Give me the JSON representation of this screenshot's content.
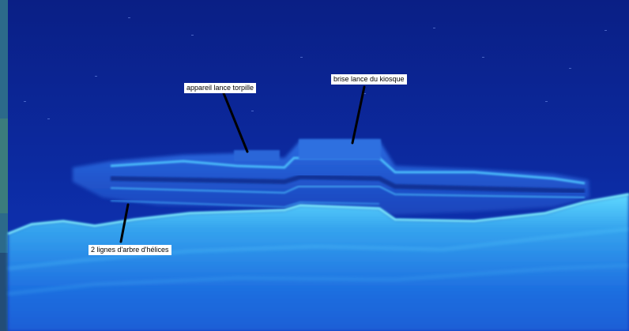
{
  "annotations": [
    {
      "id": "torpedo",
      "text": "appareil lance torpille"
    },
    {
      "id": "kiosk",
      "text": "brise lance du kiosque"
    },
    {
      "id": "shafts",
      "text": "2 lignes d'arbre d'hélices"
    }
  ],
  "colors": {
    "background": "#0a1a6a",
    "water": "#0c2a9a",
    "echo_bright": "#58e8ff",
    "seabed": "#3aa8ee",
    "label_bg": "#ffffff",
    "pointer": "#000000"
  }
}
